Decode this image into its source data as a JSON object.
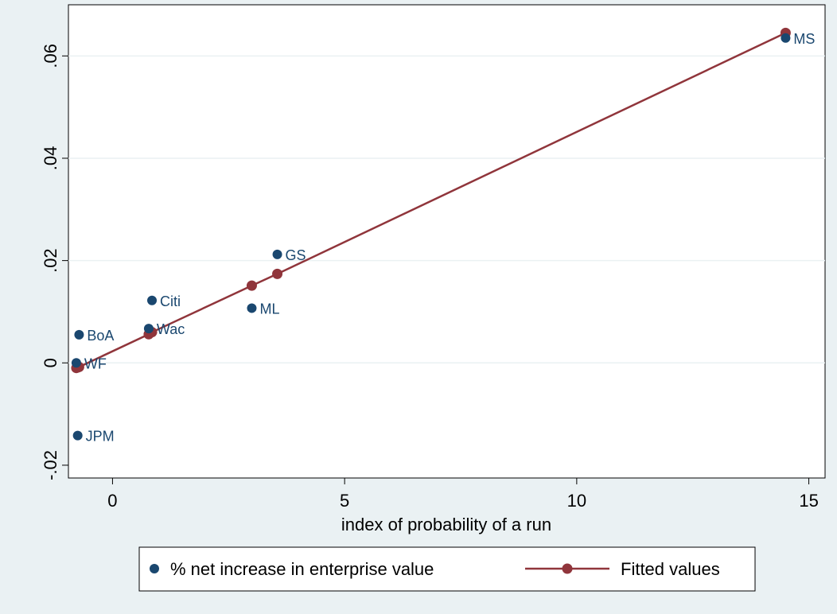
{
  "chart_data": {
    "type": "scatter",
    "xlabel": "index of probability of a run",
    "ylabel": "",
    "xlim": [
      -0.95,
      15.35
    ],
    "ylim": [
      -0.0225,
      0.07
    ],
    "x_ticks": [
      0,
      5,
      10,
      15
    ],
    "x_tick_labels": [
      "0",
      "5",
      "10",
      "15"
    ],
    "y_ticks": [
      -0.02,
      0,
      0.02,
      0.04,
      0.06
    ],
    "y_tick_labels": [
      "-.02",
      "0",
      ".02",
      ".04",
      ".06"
    ],
    "grid": "horizontal",
    "legend_position": "bottom",
    "colors": {
      "scatter": "#1a476f",
      "fit": "#90353b",
      "background": "#eaf1f3",
      "plot": "#ffffff",
      "grid": "#eaf1f3"
    },
    "series": [
      {
        "name": "% net increase in enterprise value",
        "kind": "scatter",
        "points": [
          {
            "label": "MS",
            "x": 14.5,
            "y": 0.0635
          },
          {
            "label": "GS",
            "x": 3.55,
            "y": 0.0212
          },
          {
            "label": "Citi",
            "x": 0.85,
            "y": 0.0122
          },
          {
            "label": "ML",
            "x": 3.0,
            "y": 0.0107
          },
          {
            "label": "Wac",
            "x": 0.78,
            "y": 0.0067
          },
          {
            "label": "BoA",
            "x": -0.72,
            "y": 0.0055
          },
          {
            "label": "WF",
            "x": -0.78,
            "y": 0.0
          },
          {
            "label": "JPM",
            "x": -0.75,
            "y": -0.0142
          }
        ]
      },
      {
        "name": "Fitted values",
        "kind": "line",
        "points": [
          {
            "x": -0.78,
            "y": -0.001
          },
          {
            "x": -0.75,
            "y": -0.0009
          },
          {
            "x": -0.72,
            "y": -0.0008
          },
          {
            "x": 0.78,
            "y": 0.0056
          },
          {
            "x": 0.85,
            "y": 0.006
          },
          {
            "x": 3.0,
            "y": 0.0151
          },
          {
            "x": 3.55,
            "y": 0.0174
          },
          {
            "x": 14.5,
            "y": 0.0645
          }
        ]
      }
    ]
  }
}
